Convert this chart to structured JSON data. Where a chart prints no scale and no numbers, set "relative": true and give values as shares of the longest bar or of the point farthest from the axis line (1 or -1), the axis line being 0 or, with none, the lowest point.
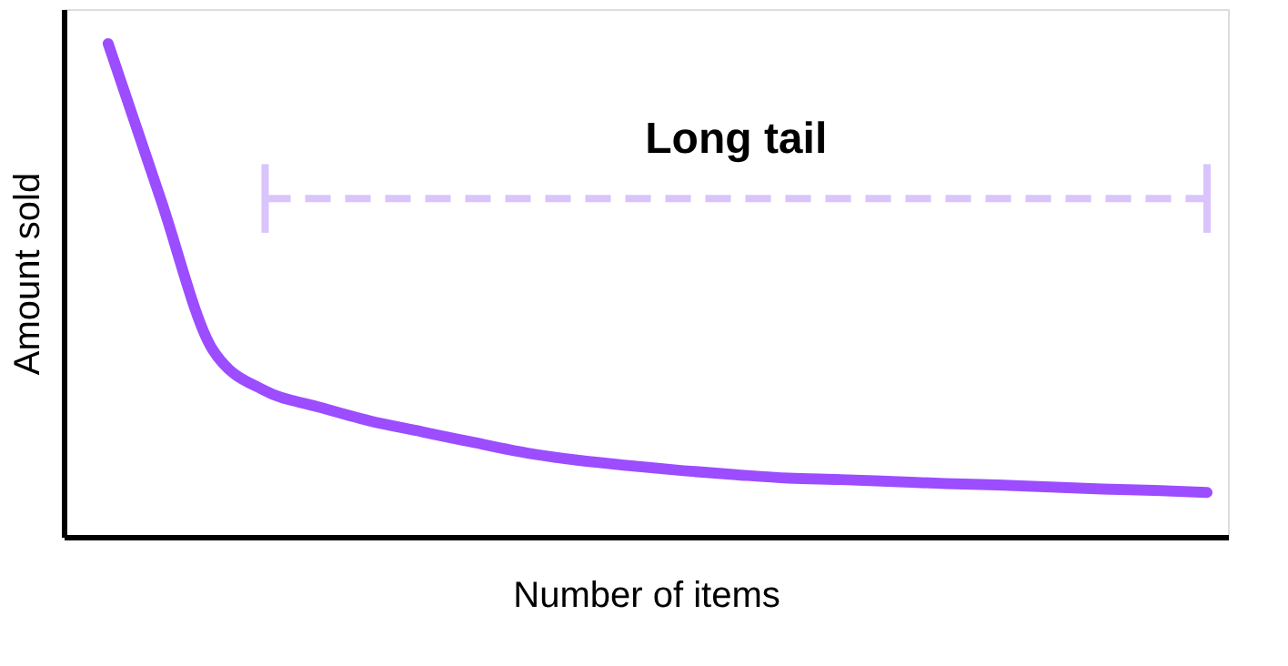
{
  "chart_data": {
    "type": "line",
    "relative": true,
    "xlabel": "Number of items",
    "ylabel": "Amount sold",
    "categories": [
      null,
      null,
      null,
      null,
      null,
      null,
      null,
      null,
      null,
      null,
      null,
      null,
      null,
      null,
      null,
      null,
      null,
      null,
      null,
      null,
      null,
      null
    ],
    "series": [
      {
        "color": "#9b4dff",
        "values": [
          1.0,
          0.686,
          0.379,
          0.296,
          0.264,
          0.235,
          0.213,
          0.191,
          0.17,
          0.155,
          0.144,
          0.134,
          0.126,
          0.119,
          0.116,
          0.112,
          0.108,
          0.105,
          0.101,
          0.097,
          0.094,
          0.09
        ]
      },
      {
        "name": "Long tail",
        "type": "line",
        "line_style": "dashed",
        "color": "#d9c4fb",
        "values": [
          null,
          null,
          null,
          0.686,
          0.686,
          0.686,
          0.686,
          0.686,
          0.686,
          0.686,
          0.686,
          0.686,
          0.686,
          0.686,
          0.686,
          0.686,
          0.686,
          0.686,
          0.686,
          0.686,
          0.686,
          0.686
        ]
      }
    ],
    "line_style": "solid"
  }
}
